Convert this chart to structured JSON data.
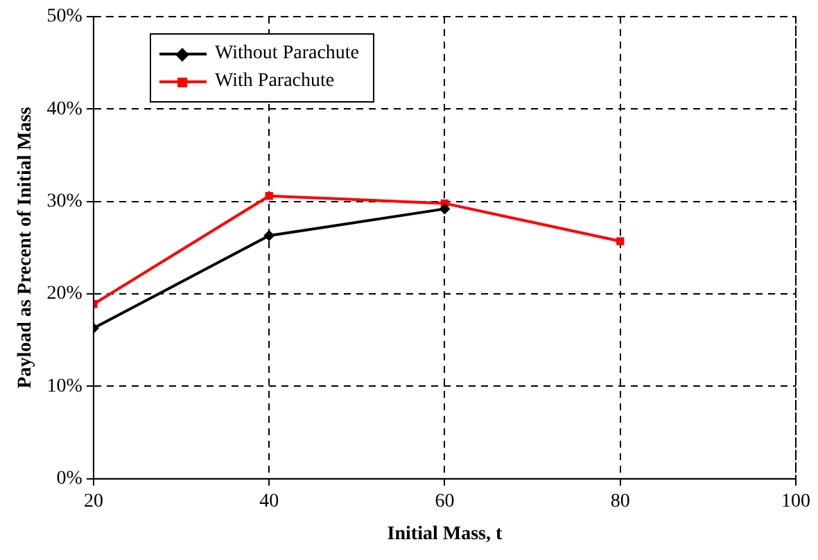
{
  "chart_data": {
    "type": "line",
    "xlabel": "Initial Mass, t",
    "ylabel": "Payload as Precent of Initial Mass",
    "x": [
      20,
      40,
      60,
      80
    ],
    "series": [
      {
        "name": "Without Parachute",
        "color": "#000000",
        "marker": "diamond",
        "values": [
          16.3,
          26.3,
          29.2,
          null
        ]
      },
      {
        "name": "With Parachute",
        "color": "#ff0000",
        "marker": "square",
        "values": [
          18.9,
          30.6,
          29.8,
          25.7
        ]
      }
    ],
    "xlim": [
      20,
      100
    ],
    "xticks": [
      20,
      40,
      60,
      80,
      100
    ],
    "ylim": [
      0,
      50
    ],
    "yticks": [
      {
        "value": 0,
        "label": "0%"
      },
      {
        "value": 10,
        "label": "10%"
      },
      {
        "value": 20,
        "label": "20%"
      },
      {
        "value": 30,
        "label": "30%"
      },
      {
        "value": 40,
        "label": "40%"
      },
      {
        "value": 50,
        "label": "50%"
      }
    ],
    "grid": true,
    "legend": "top left",
    "line_style": "solid"
  }
}
